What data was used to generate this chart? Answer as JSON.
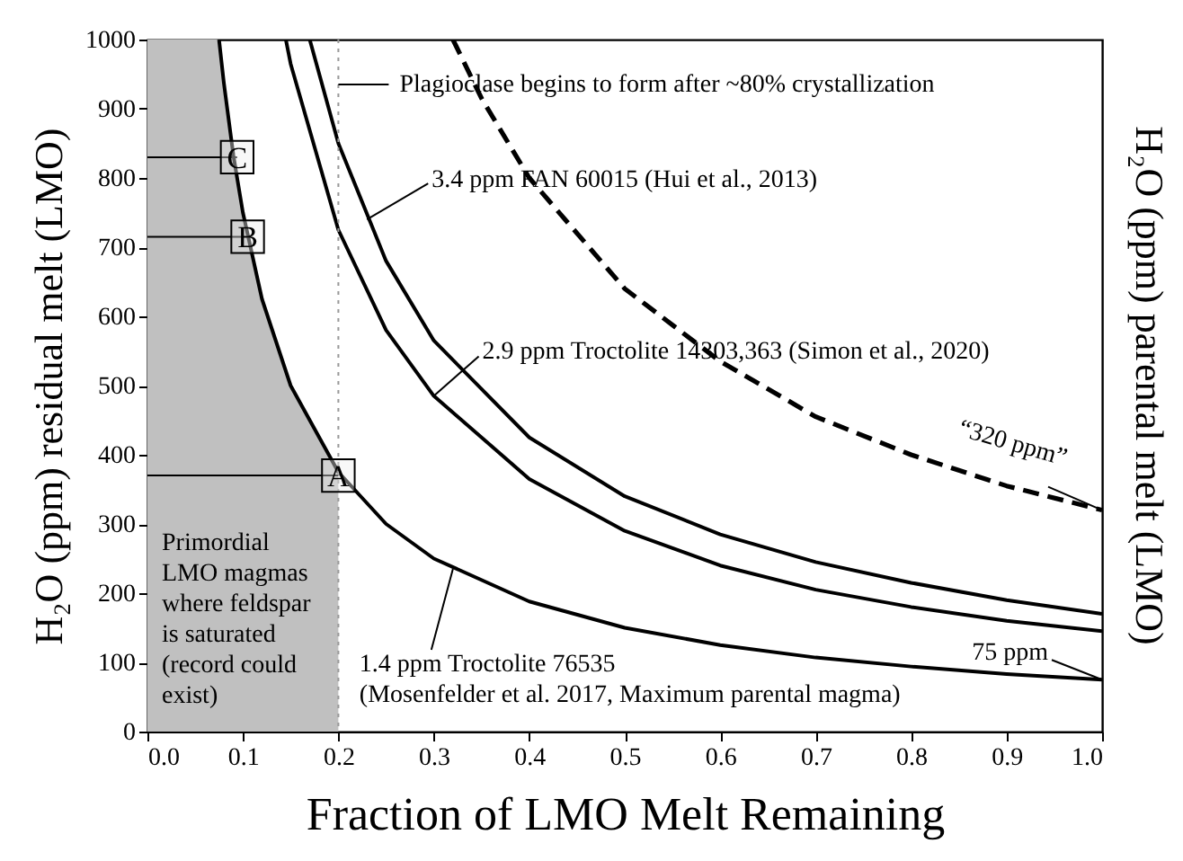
{
  "chart_data": {
    "type": "line",
    "xlabel": "Fraction of LMO Melt Remaining",
    "ylabel": "H₂O (ppm) residual melt (LMO)",
    "y2label": "H₂O (ppm) parental melt (LMO)",
    "xlim": [
      0,
      1
    ],
    "xticks": [
      {
        "value": 0,
        "label": "0.0"
      },
      0.1,
      0.2,
      0.3,
      0.4,
      0.5,
      0.6,
      0.7,
      0.8,
      0.9,
      {
        "value": 1,
        "label": "1.0"
      }
    ],
    "ylim": [
      0,
      1000
    ],
    "yticks": [
      0,
      100,
      200,
      300,
      400,
      500,
      600,
      700,
      800,
      900,
      1000
    ],
    "grid": false,
    "series": [
      {
        "type": "area",
        "color": "#c0c0c0",
        "x": [
          0,
          0.075,
          0.08,
          0.09,
          0.1,
          0.12,
          0.15,
          0.2
        ],
        "values": [
          1000,
          1000,
          938,
          833,
          750,
          625,
          500,
          375
        ]
      },
      {
        "color": "#000000",
        "line_style": "solid",
        "x": [
          0.075,
          0.08,
          0.09,
          0.1,
          0.12,
          0.15,
          0.2,
          0.25,
          0.3,
          0.4,
          0.5,
          0.6,
          0.7,
          0.8,
          0.9,
          1.0
        ],
        "values": [
          1000,
          938,
          833,
          750,
          625,
          500,
          375,
          300,
          250,
          188,
          150,
          125,
          107,
          94,
          83,
          75
        ]
      },
      {
        "color": "#000000",
        "line_style": "solid",
        "x": [
          0.145,
          0.15,
          0.2,
          0.25,
          0.3,
          0.4,
          0.5,
          0.6,
          0.7,
          0.8,
          0.9,
          1.0
        ],
        "values": [
          1000,
          965,
          725,
          580,
          485,
          365,
          290,
          240,
          205,
          180,
          160,
          145
        ]
      },
      {
        "color": "#000000",
        "line_style": "solid",
        "x": [
          0.17,
          0.2,
          0.25,
          0.3,
          0.4,
          0.5,
          0.6,
          0.7,
          0.8,
          0.9,
          1.0
        ],
        "values": [
          1000,
          850,
          680,
          565,
          425,
          340,
          285,
          245,
          215,
          190,
          170
        ]
      },
      {
        "color": "#000000",
        "line_style": "dashed",
        "x": [
          0.32,
          0.35,
          0.4,
          0.5,
          0.6,
          0.7,
          0.8,
          0.9,
          1.0
        ],
        "values": [
          1000,
          915,
          800,
          640,
          535,
          455,
          400,
          355,
          320
        ]
      }
    ],
    "ref_lines": [
      {
        "axis": "x",
        "value": 0.2,
        "label": "Plagioclase begins to form after ~80% crystallization",
        "color": "#999999",
        "line_style": "dotted"
      }
    ],
    "annotations": [
      "Primordial\nLMO magmas\nwhere feldspar\nis saturated\n(record could\nexist)",
      {
        "text": "3.4 ppm FAN 60015 (Hui et al., 2013)",
        "x": 0.23,
        "y": 740
      },
      {
        "text": "2.9 ppm Troctolite 14303,363 (Simon et al., 2020)",
        "x": 0.3,
        "y": 485
      },
      {
        "text": "1.4 ppm Troctolite 76535\n(Mosenfelder et al. 2017, Maximum parental magma)",
        "x": 0.32,
        "y": 235
      },
      {
        "text": "75 ppm",
        "x": 1.0,
        "y": 75
      },
      {
        "text": "“320 ppm”",
        "x": 1.0,
        "y": 320
      },
      {
        "text": "A",
        "x": 0.2,
        "y": 370
      },
      {
        "text": "B",
        "x": 0.105,
        "y": 715
      },
      {
        "text": "C",
        "x": 0.094,
        "y": 830
      }
    ]
  }
}
